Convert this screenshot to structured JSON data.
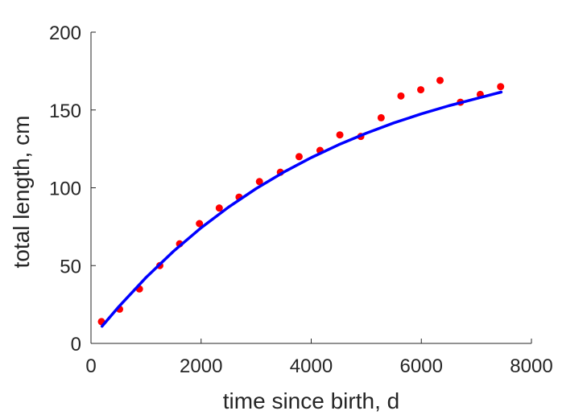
{
  "chart_data": {
    "type": "scatter",
    "xlabel": "time since birth, d",
    "ylabel": "total length, cm",
    "xlim": [
      0,
      8000
    ],
    "ylim": [
      0,
      200
    ],
    "xticks": [
      0,
      2000,
      4000,
      6000,
      8000
    ],
    "yticks": [
      0,
      50,
      100,
      150,
      200
    ],
    "grid": false,
    "series": [
      {
        "kind": "points",
        "color": "#ff0000",
        "points": [
          [
            190,
            14
          ],
          [
            520,
            22
          ],
          [
            880,
            35
          ],
          [
            1250,
            50
          ],
          [
            1610,
            64
          ],
          [
            1970,
            77
          ],
          [
            2330,
            87
          ],
          [
            2690,
            94
          ],
          [
            3060,
            104
          ],
          [
            3440,
            110
          ],
          [
            3780,
            120
          ],
          [
            4160,
            124
          ],
          [
            4520,
            134
          ],
          [
            4900,
            133
          ],
          [
            5270,
            145
          ],
          [
            5630,
            159
          ],
          [
            5990,
            163
          ],
          [
            6340,
            169
          ],
          [
            6710,
            155
          ],
          [
            7070,
            160
          ],
          [
            7440,
            165
          ]
        ]
      },
      {
        "kind": "line",
        "color": "#0000ff",
        "points": [
          [
            200,
            11
          ],
          [
            500,
            23.4
          ],
          [
            1000,
            42.4
          ],
          [
            1500,
            59.3
          ],
          [
            2000,
            74.3
          ],
          [
            2500,
            87.6
          ],
          [
            3000,
            99.5
          ],
          [
            3500,
            110.0
          ],
          [
            4000,
            119.4
          ],
          [
            4500,
            127.7
          ],
          [
            5000,
            135.1
          ],
          [
            5500,
            141.7
          ],
          [
            6000,
            147.5
          ],
          [
            6500,
            152.7
          ],
          [
            7000,
            157.3
          ],
          [
            7450,
            161.5
          ]
        ]
      }
    ]
  }
}
